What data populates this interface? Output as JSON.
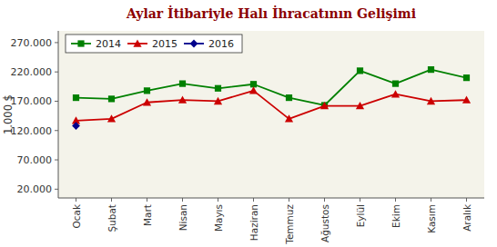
{
  "chart_data": {
    "type": "line",
    "title": "Aylar İtibariyle Halı İhracatının Gelişimi",
    "y_label": "1.000 $",
    "categories": [
      "Ocak",
      "Şubat",
      "Mart",
      "Nisan",
      "Mayıs",
      "Haziran",
      "Temmuz",
      "Ağustos",
      "Eylül",
      "Ekim",
      "Kasım",
      "Aralık"
    ],
    "series": [
      {
        "name": "2014",
        "color": "#008000",
        "marker": "square",
        "values": [
          176000,
          174000,
          188000,
          200000,
          192000,
          199000,
          176000,
          163000,
          222000,
          200000,
          224000,
          210000
        ]
      },
      {
        "name": "2015",
        "color": "#CC0000",
        "marker": "triangle",
        "values": [
          137000,
          140000,
          168000,
          172000,
          170000,
          188000,
          140000,
          162000,
          162000,
          182000,
          170000,
          172000
        ]
      },
      {
        "name": "2016",
        "color": "#00008B",
        "marker": "diamond",
        "values": [
          128000,
          null,
          null,
          null,
          null,
          null,
          null,
          null,
          null,
          null,
          null,
          null
        ]
      }
    ],
    "ylim": [
      5000,
      290000
    ],
    "yticks": [
      {
        "value": 20000,
        "label": "20.000"
      },
      {
        "value": 70000,
        "label": "70.000"
      },
      {
        "value": 120000,
        "label": "120.000"
      },
      {
        "value": 170000,
        "label": "170.000"
      },
      {
        "value": 220000,
        "label": "220.000"
      },
      {
        "value": 270000,
        "label": "270.000"
      }
    ],
    "grid": false,
    "legend": "upper left"
  }
}
